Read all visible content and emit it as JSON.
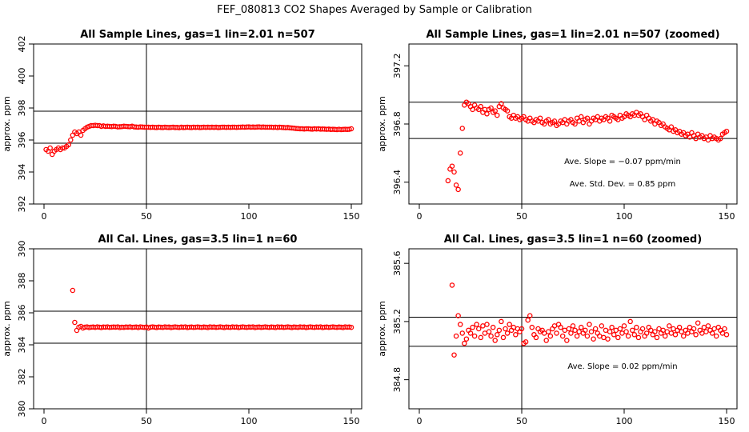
{
  "figure_title": "FEF_080813  CO2 Shapes Averaged by Sample or Calibration",
  "colors": {
    "points": "#ff0000",
    "lines": "#000000",
    "frame": "#000000"
  },
  "chart_data": [
    {
      "type": "scatter",
      "title": "All Sample Lines, gas=1 lin=2.01 n=507",
      "xlabel": "",
      "ylabel": "approx. ppm",
      "xlim": [
        0,
        150
      ],
      "ylim": [
        392,
        402
      ],
      "x_ticks": [
        "0",
        "50",
        "100",
        "150"
      ],
      "y_ticks": [
        "392",
        "394",
        "396",
        "398",
        "400",
        "402"
      ],
      "vline": 50,
      "hlines": [
        395.8,
        397.8
      ],
      "annotations": [],
      "point_color": "#ff0000",
      "x": [
        1,
        2,
        3,
        4,
        5,
        6,
        7,
        8,
        9,
        10,
        11,
        12,
        13,
        14,
        15,
        16,
        17,
        18,
        19,
        20,
        21,
        22,
        23,
        24,
        25,
        26,
        27,
        28,
        29,
        30,
        31,
        32,
        33,
        34,
        35,
        36,
        37,
        38,
        39,
        40,
        41,
        42,
        43,
        44,
        45,
        46,
        47,
        48,
        49,
        50,
        51,
        52,
        53,
        54,
        55,
        56,
        57,
        58,
        59,
        60,
        61,
        62,
        63,
        64,
        65,
        66,
        67,
        68,
        69,
        70,
        71,
        72,
        73,
        74,
        75,
        76,
        77,
        78,
        79,
        80,
        81,
        82,
        83,
        84,
        85,
        86,
        87,
        88,
        89,
        90,
        91,
        92,
        93,
        94,
        95,
        96,
        97,
        98,
        99,
        100,
        101,
        102,
        103,
        104,
        105,
        106,
        107,
        108,
        109,
        110,
        111,
        112,
        113,
        114,
        115,
        116,
        117,
        118,
        119,
        120,
        121,
        122,
        123,
        124,
        125,
        126,
        127,
        128,
        129,
        130,
        131,
        132,
        133,
        134,
        135,
        136,
        137,
        138,
        139,
        140,
        141,
        142,
        143,
        144,
        145,
        146,
        147,
        148,
        149,
        150
      ],
      "y": [
        395.4,
        395.3,
        395.5,
        395.1,
        395.3,
        395.4,
        395.5,
        395.4,
        395.5,
        395.5,
        395.6,
        395.7,
        396.0,
        396.3,
        396.5,
        396.4,
        396.5,
        396.3,
        396.6,
        396.7,
        396.8,
        396.85,
        396.9,
        396.9,
        396.92,
        396.9,
        396.9,
        396.85,
        396.88,
        396.85,
        396.86,
        396.85,
        396.84,
        396.86,
        396.85,
        396.82,
        396.83,
        396.84,
        396.86,
        396.85,
        396.84,
        396.83,
        396.86,
        396.82,
        396.81,
        396.8,
        396.82,
        396.81,
        396.8,
        396.8,
        396.8,
        396.79,
        396.8,
        396.79,
        396.78,
        396.8,
        396.79,
        396.78,
        396.8,
        396.79,
        396.78,
        396.79,
        396.8,
        396.78,
        396.79,
        396.77,
        396.8,
        396.78,
        396.79,
        396.8,
        396.79,
        396.78,
        396.8,
        396.79,
        396.8,
        396.78,
        396.79,
        396.8,
        396.79,
        396.8,
        396.79,
        396.8,
        396.79,
        396.8,
        396.78,
        396.79,
        396.8,
        396.8,
        396.79,
        396.8,
        396.79,
        396.8,
        396.8,
        396.79,
        396.8,
        396.8,
        396.81,
        396.8,
        396.81,
        396.82,
        396.8,
        396.81,
        396.8,
        396.81,
        396.82,
        396.8,
        396.81,
        396.8,
        396.8,
        396.8,
        396.8,
        396.79,
        396.8,
        396.78,
        396.8,
        396.79,
        396.78,
        396.77,
        396.78,
        396.76,
        396.75,
        396.74,
        396.72,
        396.71,
        396.7,
        396.7,
        396.69,
        396.7,
        396.7,
        396.69,
        396.68,
        396.7,
        396.69,
        396.7,
        396.68,
        396.69,
        396.68,
        396.67,
        396.68,
        396.66,
        396.67,
        396.66,
        396.65,
        396.67,
        396.65,
        396.66,
        396.67,
        396.66,
        396.67,
        396.7
      ]
    },
    {
      "type": "scatter",
      "title": "All Sample Lines, gas=1 lin=2.01 n=507 (zoomed)",
      "xlabel": "",
      "ylabel": "approx. ppm",
      "xlim": [
        0,
        150
      ],
      "ylim": [
        396.25,
        397.35
      ],
      "x_ticks": [
        "0",
        "50",
        "100",
        "150"
      ],
      "y_ticks": [
        "396.4",
        "396.8",
        "397.2"
      ],
      "y_tick_values": [
        396.4,
        396.8,
        397.2
      ],
      "vline": 50,
      "hlines": [
        396.7,
        396.95
      ],
      "annotations": [
        "Ave. Slope = −0.07  ppm/min",
        "Ave. Std. Dev. = 0.85  ppm"
      ],
      "point_color": "#ff0000",
      "x": [
        14,
        15,
        16,
        17,
        18,
        19,
        20,
        21,
        22,
        23,
        24,
        25,
        26,
        27,
        28,
        29,
        30,
        31,
        32,
        33,
        34,
        35,
        36,
        37,
        38,
        39,
        40,
        41,
        42,
        43,
        44,
        45,
        46,
        47,
        48,
        49,
        50,
        51,
        52,
        53,
        54,
        55,
        56,
        57,
        58,
        59,
        60,
        61,
        62,
        63,
        64,
        65,
        66,
        67,
        68,
        69,
        70,
        71,
        72,
        73,
        74,
        75,
        76,
        77,
        78,
        79,
        80,
        81,
        82,
        83,
        84,
        85,
        86,
        87,
        88,
        89,
        90,
        91,
        92,
        93,
        94,
        95,
        96,
        97,
        98,
        99,
        100,
        101,
        102,
        103,
        104,
        105,
        106,
        107,
        108,
        109,
        110,
        111,
        112,
        113,
        114,
        115,
        116,
        117,
        118,
        119,
        120,
        121,
        122,
        123,
        124,
        125,
        126,
        127,
        128,
        129,
        130,
        131,
        132,
        133,
        134,
        135,
        136,
        137,
        138,
        139,
        140,
        141,
        142,
        143,
        144,
        145,
        146,
        147,
        148,
        149,
        150
      ],
      "y": [
        396.41,
        396.49,
        396.51,
        396.47,
        396.38,
        396.35,
        396.6,
        396.77,
        396.93,
        396.95,
        396.94,
        396.92,
        396.9,
        396.93,
        396.91,
        396.9,
        396.92,
        396.88,
        396.9,
        396.87,
        396.9,
        396.91,
        396.88,
        396.89,
        396.86,
        396.92,
        396.94,
        396.91,
        396.9,
        396.89,
        396.85,
        396.84,
        396.86,
        396.84,
        396.85,
        396.83,
        396.84,
        396.85,
        396.83,
        396.82,
        396.84,
        396.82,
        396.81,
        396.83,
        396.82,
        396.84,
        396.81,
        396.8,
        396.82,
        396.83,
        396.8,
        396.81,
        396.82,
        396.79,
        396.8,
        396.82,
        396.81,
        396.83,
        396.8,
        396.82,
        396.83,
        396.81,
        396.8,
        396.84,
        396.82,
        396.85,
        396.81,
        396.83,
        396.84,
        396.8,
        396.82,
        396.84,
        396.83,
        396.85,
        396.82,
        396.84,
        396.83,
        396.85,
        396.84,
        396.82,
        396.86,
        396.85,
        396.84,
        396.83,
        396.86,
        396.84,
        396.85,
        396.87,
        396.86,
        396.85,
        396.87,
        396.86,
        396.88,
        396.86,
        396.87,
        396.85,
        396.83,
        396.86,
        396.84,
        396.82,
        396.83,
        396.8,
        396.82,
        396.81,
        396.79,
        396.8,
        396.78,
        396.77,
        396.76,
        396.78,
        396.75,
        396.76,
        396.74,
        396.75,
        396.73,
        396.74,
        396.72,
        396.73,
        396.71,
        396.74,
        396.72,
        396.7,
        396.73,
        396.71,
        396.72,
        396.7,
        396.71,
        396.69,
        396.72,
        396.7,
        396.71,
        396.7,
        396.69,
        396.7,
        396.73,
        396.74,
        396.75
      ]
    },
    {
      "type": "scatter",
      "title": "All Cal. Lines, gas=3.5 lin=1 n=60",
      "xlabel": "",
      "ylabel": "approx. ppm",
      "xlim": [
        0,
        150
      ],
      "ylim": [
        380,
        390
      ],
      "x_ticks": [
        "0",
        "50",
        "100",
        "150"
      ],
      "y_ticks": [
        "380",
        "382",
        "384",
        "386",
        "388",
        "390"
      ],
      "vline": 50,
      "hlines": [
        384.1,
        386.1
      ],
      "annotations": [],
      "point_color": "#ff0000",
      "x": [
        14,
        15,
        16,
        17,
        18,
        19,
        20,
        21,
        22,
        23,
        24,
        25,
        26,
        27,
        28,
        29,
        30,
        31,
        32,
        33,
        34,
        35,
        36,
        37,
        38,
        39,
        40,
        41,
        42,
        43,
        44,
        45,
        46,
        47,
        48,
        49,
        50,
        51,
        52,
        53,
        54,
        55,
        56,
        57,
        58,
        59,
        60,
        61,
        62,
        63,
        64,
        65,
        66,
        67,
        68,
        69,
        70,
        71,
        72,
        73,
        74,
        75,
        76,
        77,
        78,
        79,
        80,
        81,
        82,
        83,
        84,
        85,
        86,
        87,
        88,
        89,
        90,
        91,
        92,
        93,
        94,
        95,
        96,
        97,
        98,
        99,
        100,
        101,
        102,
        103,
        104,
        105,
        106,
        107,
        108,
        109,
        110,
        111,
        112,
        113,
        114,
        115,
        116,
        117,
        118,
        119,
        120,
        121,
        122,
        123,
        124,
        125,
        126,
        127,
        128,
        129,
        130,
        131,
        132,
        133,
        134,
        135,
        136,
        137,
        138,
        139,
        140,
        141,
        142,
        143,
        144,
        145,
        146,
        147,
        148,
        149,
        150
      ],
      "y": [
        387.4,
        385.4,
        384.9,
        385.1,
        385.15,
        385.05,
        385.1,
        385.12,
        385.08,
        385.1,
        385.11,
        385.09,
        385.12,
        385.1,
        385.08,
        385.11,
        385.1,
        385.12,
        385.09,
        385.1,
        385.11,
        385.1,
        385.12,
        385.08,
        385.1,
        385.09,
        385.11,
        385.1,
        385.12,
        385.09,
        385.1,
        385.11,
        385.08,
        385.12,
        385.1,
        385.09,
        385.11,
        385.05,
        385.1,
        385.12,
        385.1,
        385.08,
        385.11,
        385.1,
        385.09,
        385.12,
        385.1,
        385.11,
        385.08,
        385.1,
        385.12,
        385.1,
        385.09,
        385.11,
        385.1,
        385.12,
        385.08,
        385.1,
        385.11,
        385.09,
        385.1,
        385.12,
        385.1,
        385.09,
        385.11,
        385.1,
        385.08,
        385.12,
        385.1,
        385.11,
        385.09,
        385.1,
        385.12,
        385.1,
        385.08,
        385.11,
        385.1,
        385.09,
        385.12,
        385.1,
        385.11,
        385.08,
        385.1,
        385.12,
        385.1,
        385.09,
        385.11,
        385.1,
        385.12,
        385.08,
        385.1,
        385.11,
        385.09,
        385.1,
        385.12,
        385.1,
        385.09,
        385.11,
        385.1,
        385.08,
        385.12,
        385.1,
        385.11,
        385.09,
        385.1,
        385.12,
        385.1,
        385.08,
        385.11,
        385.1,
        385.09,
        385.12,
        385.1,
        385.11,
        385.08,
        385.1,
        385.12,
        385.1,
        385.09,
        385.11,
        385.1,
        385.12,
        385.08,
        385.1,
        385.11,
        385.09,
        385.1,
        385.12,
        385.1,
        385.09,
        385.11,
        385.1,
        385.08,
        385.12,
        385.1,
        385.11,
        385.09
      ]
    },
    {
      "type": "scatter",
      "title": "All Cal. Lines, gas=3.5 lin=1 n=60 (zoomed)",
      "xlabel": "",
      "ylabel": "approx. ppm",
      "xlim": [
        0,
        150
      ],
      "ylim": [
        384.6,
        385.7
      ],
      "x_ticks": [
        "0",
        "50",
        "100",
        "150"
      ],
      "y_ticks": [
        "384.8",
        "385.2",
        "385.6"
      ],
      "y_tick_values": [
        384.8,
        385.2,
        385.6
      ],
      "vline": 50,
      "hlines": [
        385.03,
        385.23
      ],
      "annotations": [
        "Ave. Slope = 0.02  ppm/min"
      ],
      "point_color": "#ff0000",
      "x": [
        16,
        17,
        18,
        19,
        20,
        21,
        22,
        23,
        24,
        25,
        26,
        27,
        28,
        29,
        30,
        31,
        32,
        33,
        34,
        35,
        36,
        37,
        38,
        39,
        40,
        41,
        42,
        43,
        44,
        45,
        46,
        47,
        48,
        49,
        50,
        51,
        52,
        53,
        54,
        55,
        56,
        57,
        58,
        59,
        60,
        61,
        62,
        63,
        64,
        65,
        66,
        67,
        68,
        69,
        70,
        71,
        72,
        73,
        74,
        75,
        76,
        77,
        78,
        79,
        80,
        81,
        82,
        83,
        84,
        85,
        86,
        87,
        88,
        89,
        90,
        91,
        92,
        93,
        94,
        95,
        96,
        97,
        98,
        99,
        100,
        101,
        102,
        103,
        104,
        105,
        106,
        107,
        108,
        109,
        110,
        111,
        112,
        113,
        114,
        115,
        116,
        117,
        118,
        119,
        120,
        121,
        122,
        123,
        124,
        125,
        126,
        127,
        128,
        129,
        130,
        131,
        132,
        133,
        134,
        135,
        136,
        137,
        138,
        139,
        140,
        141,
        142,
        143,
        144,
        145,
        146,
        147,
        148,
        149,
        150
      ],
      "y": [
        385.45,
        384.97,
        385.1,
        385.24,
        385.18,
        385.12,
        385.05,
        385.08,
        385.14,
        385.12,
        385.16,
        385.1,
        385.18,
        385.15,
        385.09,
        385.17,
        385.12,
        385.18,
        385.13,
        385.1,
        385.16,
        385.07,
        385.11,
        385.14,
        385.2,
        385.09,
        385.15,
        385.12,
        385.18,
        385.14,
        385.16,
        385.11,
        385.15,
        385.13,
        385.15,
        385.05,
        385.06,
        385.21,
        385.24,
        385.16,
        385.11,
        385.09,
        385.15,
        385.13,
        385.14,
        385.12,
        385.07,
        385.13,
        385.1,
        385.15,
        385.17,
        385.12,
        385.18,
        385.16,
        385.1,
        385.14,
        385.07,
        385.15,
        385.12,
        385.17,
        385.14,
        385.1,
        385.13,
        385.16,
        385.12,
        385.14,
        385.1,
        385.18,
        385.13,
        385.08,
        385.15,
        385.12,
        385.1,
        385.17,
        385.09,
        385.14,
        385.08,
        385.13,
        385.16,
        385.11,
        385.14,
        385.09,
        385.15,
        385.12,
        385.17,
        385.13,
        385.1,
        385.2,
        385.14,
        385.11,
        385.16,
        385.09,
        385.13,
        385.15,
        385.1,
        385.12,
        385.16,
        385.14,
        385.11,
        385.13,
        385.09,
        385.15,
        385.12,
        385.14,
        385.1,
        385.13,
        385.17,
        385.12,
        385.15,
        385.11,
        385.14,
        385.16,
        385.13,
        385.1,
        385.14,
        385.12,
        385.16,
        385.13,
        385.15,
        385.11,
        385.19,
        385.14,
        385.12,
        385.16,
        385.13,
        385.17,
        385.14,
        385.12,
        385.15,
        385.1,
        385.16,
        385.14,
        385.12,
        385.15,
        385.11
      ]
    }
  ]
}
